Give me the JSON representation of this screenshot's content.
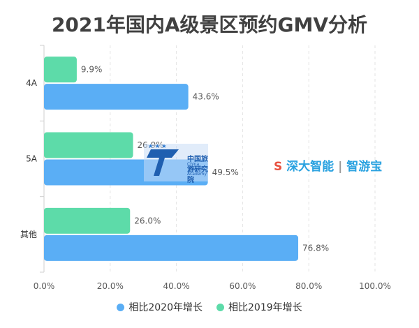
{
  "chart_data": {
    "type": "bar",
    "orientation": "horizontal",
    "title": "2021年国内A级景区预约GMV分析",
    "categories": [
      "4A",
      "5A",
      "其他"
    ],
    "series": [
      {
        "name": "相比2019年增长",
        "values": [
          9.9,
          26.9,
          26.0
        ],
        "labels": [
          "9.9%",
          "26.9%",
          "26.0%"
        ],
        "color": "#5ddba9"
      },
      {
        "name": "相比2020年增长",
        "values": [
          43.6,
          49.5,
          76.8
        ],
        "labels": [
          "43.6%",
          "49.5%",
          "76.8%"
        ],
        "color": "#5aaef5"
      }
    ],
    "xlim": [
      0,
      100
    ],
    "xticks": [
      "0.0%",
      "20.0%",
      "40.0%",
      "60.0%",
      "80.0%",
      "100.0%"
    ],
    "grid": true,
    "legend_position": "bottom",
    "legend": [
      {
        "label": "相比2020年增长",
        "color": "#5aaef5"
      },
      {
        "label": "相比2019年增长",
        "color": "#5ddba9"
      }
    ]
  },
  "watermark": {
    "institute_cn": "中国旅游研究院",
    "institute_en": "China Tourism Academy",
    "brand": "深大智能",
    "brand_sub": "智游宝"
  }
}
